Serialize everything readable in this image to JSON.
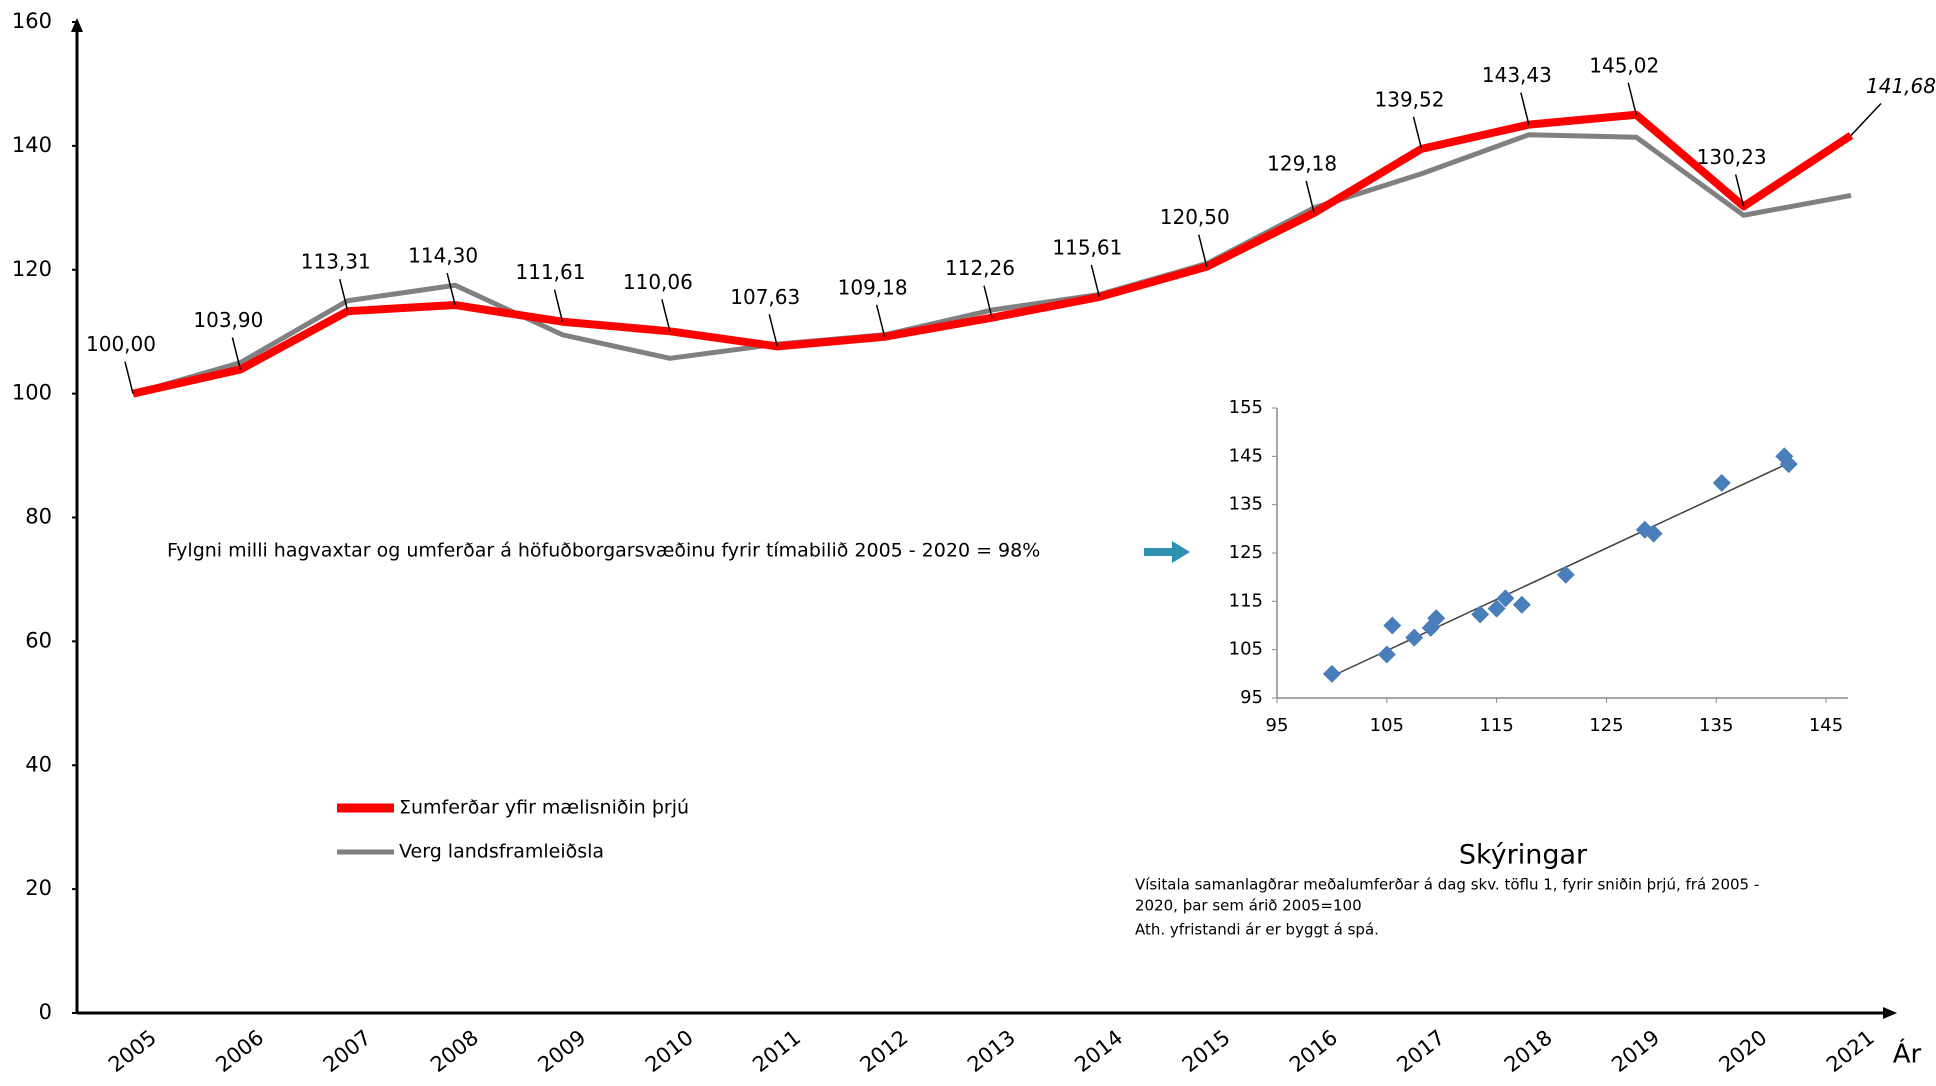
{
  "chart_data": [
    {
      "type": "line",
      "x_label": "Ár",
      "categories": [
        "2005",
        "2006",
        "2007",
        "2008",
        "2009",
        "2010",
        "2011",
        "2012",
        "2013",
        "2014",
        "2015",
        "2016",
        "2017",
        "2018",
        "2019",
        "2020",
        "2021"
      ],
      "series": [
        {
          "name": "Σumferðar yfir mælisniðin þrjú",
          "color": "#ff0000",
          "values": [
            100.0,
            103.9,
            113.31,
            114.3,
            111.61,
            110.06,
            107.63,
            109.18,
            112.26,
            115.61,
            120.5,
            129.18,
            139.52,
            143.43,
            145.02,
            130.23,
            141.68
          ],
          "value_labels": [
            "100,00",
            "103,90",
            "113,31",
            "114,30",
            "111,61",
            "110,06",
            "107,63",
            "109,18",
            "112,26",
            "115,61",
            "120,50",
            "129,18",
            "139,52",
            "143,43",
            "145,02",
            "130,23",
            "141,68"
          ],
          "forecast_label_color": "#ff2a2a"
        },
        {
          "name": "Verg landsframleiðsla",
          "color": "#808080",
          "values": [
            100,
            105,
            115,
            117.5,
            109.5,
            105.7,
            108,
            109.5,
            113.5,
            116,
            121,
            130,
            135.5,
            141.8,
            141.4,
            128.8,
            132
          ]
        }
      ],
      "ylim": [
        0,
        160
      ],
      "yticks": [
        0,
        20,
        40,
        60,
        80,
        100,
        120,
        140,
        160
      ],
      "annotation": "Fylgni milli hagvaxtar og umferðar á höfuðborgarsvæðinu fyrir tímabilið 2005 - 2020 = 98%",
      "notes_title": "Skýringar",
      "notes": [
        "Vísitala samanlagðrar meðalumferðar á dag  skv. töflu 1, fyrir sniðin  þrjú, frá 2005 -",
        "2020, þar sem árið 2005=100",
        "Ath. yfristandi ár er byggt á spá."
      ]
    },
    {
      "type": "scatter",
      "color": "#4a7ebb",
      "x": [
        100,
        105,
        105.5,
        107.5,
        109,
        109.5,
        113.5,
        115,
        115.8,
        117.3,
        121.3,
        128.5,
        129.3,
        135.5,
        141.2,
        141.6
      ],
      "y": [
        100,
        104,
        110,
        107.5,
        109.5,
        111.5,
        112.3,
        113.5,
        115.6,
        114.3,
        120.5,
        129.8,
        129,
        139.5,
        145,
        143.4
      ],
      "trendline": {
        "x": [
          100,
          141.6
        ],
        "y": [
          99.5,
          143.6
        ],
        "color": "#404040"
      },
      "xlim": [
        95,
        147
      ],
      "xticks": [
        95,
        105,
        115,
        125,
        135,
        145
      ],
      "ylim": [
        95,
        155
      ],
      "yticks": [
        95,
        105,
        115,
        125,
        135,
        145,
        155
      ]
    }
  ]
}
